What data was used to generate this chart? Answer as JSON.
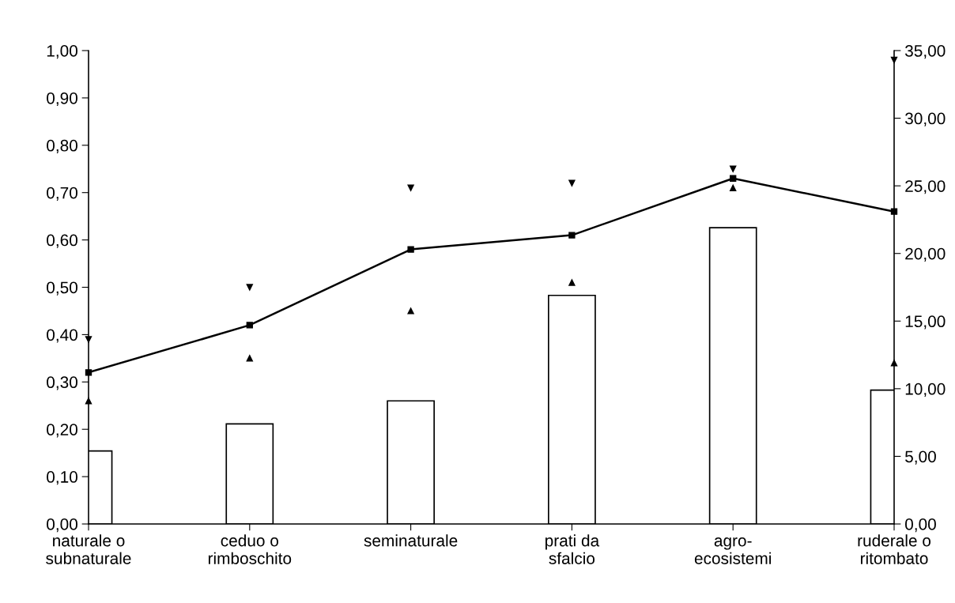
{
  "chart_data": {
    "type": "bar",
    "categories": [
      "naturale o\nsubnaturale",
      "ceduo o\nrimboschito",
      "seminaturale",
      "prati da\nsfalcio",
      "agro-\necosistemi",
      "ruderale o\nritombato"
    ],
    "series": [
      {
        "axis": "y2",
        "color": "#ffffff",
        "values": [
          5.4,
          7.4,
          9.1,
          16.9,
          21.9,
          9.9
        ]
      },
      {
        "type": "line",
        "axis": "y",
        "color": "#000000",
        "marker": "square",
        "line_style": "solid",
        "values": [
          0.32,
          0.42,
          0.58,
          0.61,
          0.73,
          0.66
        ]
      },
      {
        "type": "scatter",
        "axis": "y",
        "color": "#000000",
        "marker": "triangle",
        "values": [
          0.26,
          0.35,
          0.45,
          0.51,
          0.71,
          0.34
        ]
      },
      {
        "type": "scatter",
        "axis": "y",
        "color": "#000000",
        "marker": "triangle",
        "values": [
          0.39,
          0.5,
          0.71,
          0.72,
          0.75,
          0.98
        ]
      }
    ],
    "ylim": [
      0,
      1
    ],
    "yticks": [
      {
        "value": 0,
        "label": "0,00"
      },
      {
        "value": 0.1,
        "label": "0,10"
      },
      {
        "value": 0.2,
        "label": "0,20"
      },
      {
        "value": 0.3,
        "label": "0,30"
      },
      {
        "value": 0.4,
        "label": "0,40"
      },
      {
        "value": 0.5,
        "label": "0,50"
      },
      {
        "value": 0.6,
        "label": "0,60"
      },
      {
        "value": 0.7,
        "label": "0,70"
      },
      {
        "value": 0.8,
        "label": "0,80"
      },
      {
        "value": 0.9,
        "label": "0,90"
      },
      {
        "value": 1,
        "label": "1,00"
      }
    ],
    "y2lim": [
      0,
      35
    ],
    "y2ticks": [
      {
        "value": 0,
        "label": "0,00"
      },
      {
        "value": 5,
        "label": "5,00"
      },
      {
        "value": 10,
        "label": "10,00"
      },
      {
        "value": 15,
        "label": "15,00"
      },
      {
        "value": 20,
        "label": "20,00"
      },
      {
        "value": 25,
        "label": "25,00"
      },
      {
        "value": 30,
        "label": "30,00"
      },
      {
        "value": 35,
        "label": "35,00"
      }
    ],
    "grid": false,
    "legend": false
  }
}
